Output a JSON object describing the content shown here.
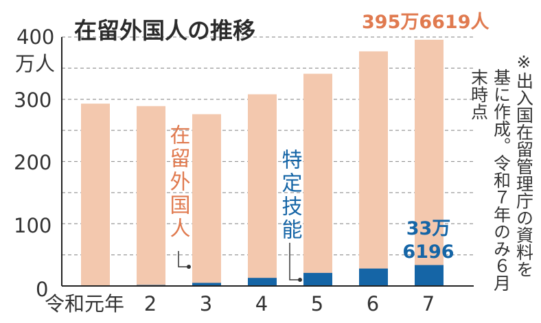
{
  "title": "在留外国人の推移",
  "y_unit": "万人",
  "note_lines": [
    "※出入国在留管理庁の資料を",
    "基に作成。令和７年のみ６月",
    "末時点"
  ],
  "series_labels": {
    "foreign": "在留外国人",
    "skill": "特定技能"
  },
  "annotations": {
    "total_last": "395万6619人",
    "skill_last_1": "33万",
    "skill_last_2": "6196"
  },
  "colors": {
    "foreign": "#f3c8ae",
    "skill": "#1565a6",
    "foreign_text": "#e07a4f",
    "skill_text": "#1565a6",
    "grid": "#999999"
  },
  "chart_data": {
    "type": "bar",
    "title": "在留外国人の推移",
    "xlabel": "",
    "ylabel": "万人",
    "categories": [
      "令和元年",
      "2",
      "3",
      "4",
      "5",
      "6",
      "7"
    ],
    "series": [
      {
        "name": "在留外国人",
        "values": [
          293,
          289,
          276,
          308,
          341,
          377,
          395.6619
        ]
      },
      {
        "name": "特定技能",
        "values": [
          0.2,
          1.6,
          5,
          13,
          21,
          28,
          33.6196
        ]
      }
    ],
    "ylim": [
      0,
      400
    ],
    "yticks": [
      0,
      100,
      200,
      300,
      400
    ],
    "grid": true
  }
}
